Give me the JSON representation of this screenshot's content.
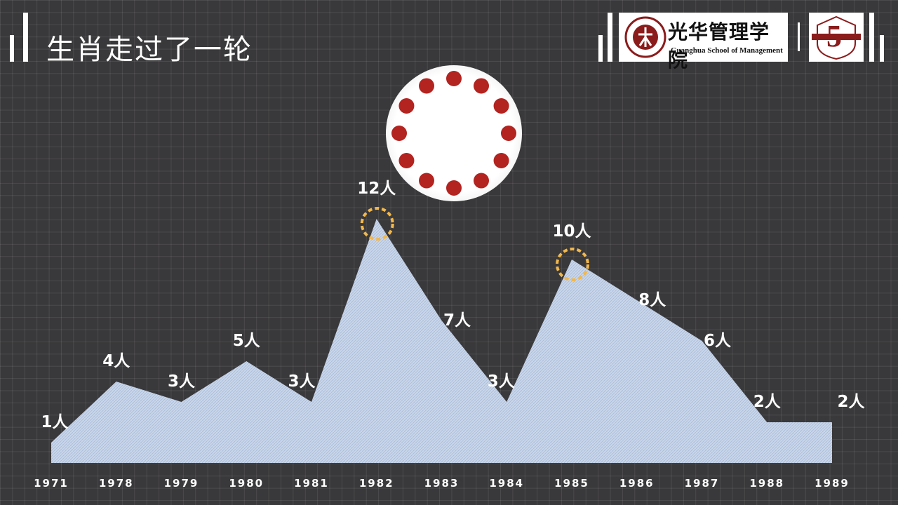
{
  "header": {
    "title": "生肖走过了一轮"
  },
  "logos": {
    "school_name_cn": "光华管理学院",
    "school_name_en": "Guanghua School of Management",
    "anniversary": "5"
  },
  "colors": {
    "background": "#39383a",
    "area_fill": "#c9d6ea",
    "highlight": "#f2b84b",
    "text": "#ffffff",
    "logo_red": "#8b1c1c"
  },
  "chart_data": {
    "type": "area",
    "categories": [
      "1971",
      "1978",
      "1979",
      "1980",
      "1981",
      "1982",
      "1983",
      "1984",
      "1985",
      "1986",
      "1987",
      "1988",
      "1989"
    ],
    "values": [
      1,
      4,
      3,
      5,
      3,
      12,
      7,
      3,
      10,
      8,
      6,
      2,
      2
    ],
    "data_labels": [
      "1人",
      "4人",
      "3人",
      "5人",
      "3人",
      "12人",
      "7人",
      "3人",
      "10人",
      "8人",
      "6人",
      "2人",
      "2人"
    ],
    "highlighted": [
      "1982",
      "1985"
    ],
    "ylim": [
      0,
      12
    ],
    "grid": false
  }
}
